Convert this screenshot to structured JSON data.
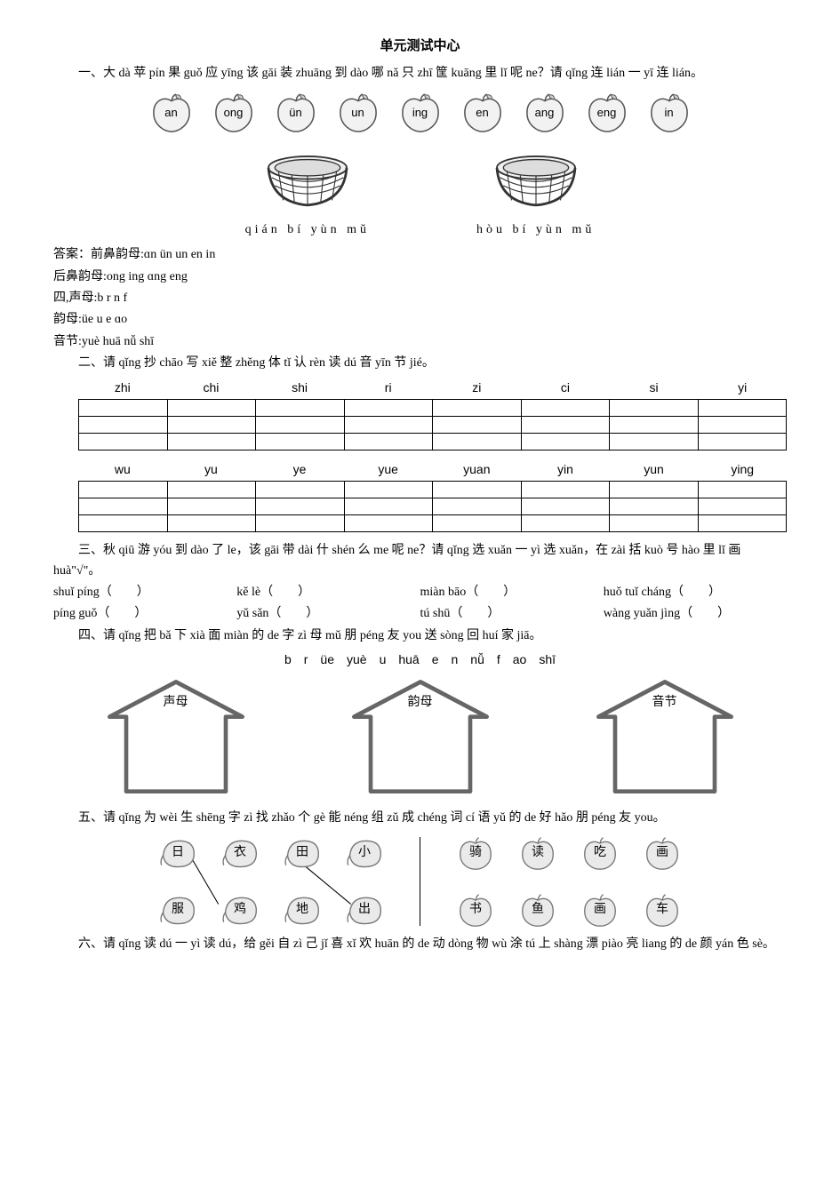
{
  "title": "单元测试中心",
  "q1": {
    "prompt": "一、大 dà 苹 pín 果 guǒ 应 yīng 该 gāi 装 zhuāng 到 dào 哪 nǎ 只 zhī 筐 kuāng 里 lǐ 呢 ne？请 qǐng 连 lián 一 yī 连 lián。",
    "apples": [
      "an",
      "ong",
      "ün",
      "un",
      "ing",
      "en",
      "ang",
      "eng",
      "in"
    ],
    "basket_left_label": "qián bí yùn mǔ",
    "basket_right_label": "hòu bí yùn mǔ"
  },
  "answers": {
    "a1": "答案：前鼻韵母:ɑn ün un en in",
    "a2": "后鼻韵母:ong ing ɑng eng",
    "a3": "四,声母:b r n f",
    "a4": "韵母:üe  u e ɑo",
    "a5": "音节:yuè huā nǚ shī"
  },
  "q2": {
    "prompt": "二、请 qǐng 抄 chāo 写 xiě 整 zhěng 体 tǐ 认 rèn 读 dú 音 yīn 节 jié。",
    "row1": [
      "zhi",
      "chi",
      "shi",
      "ri",
      "zi",
      "ci",
      "si",
      "yi"
    ],
    "row2": [
      "wu",
      "yu",
      "ye",
      "yue",
      "yuan",
      "yin",
      "yun",
      "ying"
    ]
  },
  "q3": {
    "prompt1": "三、秋 qiū 游 yóu 到 dào 了 le，该 gāi 带 dài 什 shén 么 me 呢 ne？请 qǐng 选 xuǎn 一 yì 选 xuǎn，在 zài 括 kuò 号 hào 里 lǐ 画 huà\"√\"。",
    "items": [
      [
        "shuǐ píng（　　）",
        "kě lè（　　）",
        "miàn bāo（　　）",
        "huǒ tuǐ cháng（　　）"
      ],
      [
        "píng guǒ（　　）",
        "yǔ sǎn（　　）",
        "tú shū（　　）",
        "wàng yuǎn jìng（　　）"
      ]
    ]
  },
  "q4": {
    "prompt": "四、请 qǐng 把 bǎ 下 xià 面 miàn 的 de 字 zì 母 mǔ 朋 péng 友 you 送 sòng 回 huí 家 jiā。",
    "letters": "b　r　üe　yuè　u　huā　e　n　nǚ　f　ao　shī",
    "houses": [
      "声母",
      "韵母",
      "音节"
    ]
  },
  "q5": {
    "prompt": "五、请 qǐng 为 wèi 生 shēng 字 zì 找 zhǎo 个 gè 能 néng 组 zǔ 成 chéng 词 cí 语 yǔ 的 de 好 hǎo 朋 péng 友 you。",
    "left_top": [
      "日",
      "衣",
      "田",
      "小"
    ],
    "left_bottom": [
      "服",
      "鸡",
      "地",
      "出"
    ],
    "right_top": [
      "骑",
      "读",
      "吃",
      "画"
    ],
    "right_bottom": [
      "书",
      "鱼",
      "画",
      "车"
    ]
  },
  "q6": {
    "prompt": "六、请 qǐng 读 dú 一 yì 读 dú，给 gěi 自 zì 己 jǐ 喜 xǐ 欢 huān 的 de 动 dòng 物 wù 涂 tú 上 shàng 漂 piào 亮 liang 的 de 颜 yán 色 sè。"
  },
  "style": {
    "text_color": "#000000",
    "bg_color": "#ffffff",
    "stroke": "#444444",
    "fill_light": "#e8e8e8",
    "fill_mid": "#bdbdbd"
  }
}
